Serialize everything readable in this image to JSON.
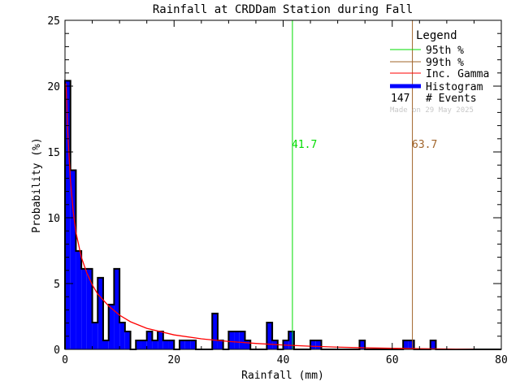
{
  "chart_data": {
    "type": "bar",
    "title": "Rainfall at CRDDam Station during Fall",
    "xlabel": "Rainfall (mm)",
    "ylabel": "Probability (%)",
    "xlim": [
      0,
      80
    ],
    "ylim": [
      0,
      25
    ],
    "xticks": [
      "0",
      "20",
      "40",
      "60",
      "80"
    ],
    "yticks": [
      "0",
      "5",
      "10",
      "15",
      "20",
      "25"
    ],
    "bin_width": 1,
    "histogram": {
      "name": "Histogram",
      "color": "#0000ff",
      "bins": [
        {
          "x": 0,
          "y": 20.41
        },
        {
          "x": 1,
          "y": 13.61
        },
        {
          "x": 2,
          "y": 7.48
        },
        {
          "x": 3,
          "y": 6.12
        },
        {
          "x": 4,
          "y": 6.12
        },
        {
          "x": 5,
          "y": 2.04
        },
        {
          "x": 6,
          "y": 5.44
        },
        {
          "x": 7,
          "y": 0.68
        },
        {
          "x": 8,
          "y": 3.4
        },
        {
          "x": 9,
          "y": 6.12
        },
        {
          "x": 10,
          "y": 2.04
        },
        {
          "x": 11,
          "y": 1.36
        },
        {
          "x": 13,
          "y": 0.68
        },
        {
          "x": 14,
          "y": 0.68
        },
        {
          "x": 15,
          "y": 1.36
        },
        {
          "x": 16,
          "y": 0.68
        },
        {
          "x": 17,
          "y": 1.36
        },
        {
          "x": 18,
          "y": 0.68
        },
        {
          "x": 19,
          "y": 0.68
        },
        {
          "x": 21,
          "y": 0.68
        },
        {
          "x": 22,
          "y": 0.68
        },
        {
          "x": 23,
          "y": 0.68
        },
        {
          "x": 27,
          "y": 2.72
        },
        {
          "x": 28,
          "y": 0.68
        },
        {
          "x": 30,
          "y": 1.36
        },
        {
          "x": 31,
          "y": 1.36
        },
        {
          "x": 32,
          "y": 1.36
        },
        {
          "x": 33,
          "y": 0.68
        },
        {
          "x": 37,
          "y": 2.04
        },
        {
          "x": 38,
          "y": 0.68
        },
        {
          "x": 40,
          "y": 0.68
        },
        {
          "x": 41,
          "y": 1.36
        },
        {
          "x": 45,
          "y": 0.68
        },
        {
          "x": 46,
          "y": 0.68
        },
        {
          "x": 54,
          "y": 0.68
        },
        {
          "x": 62,
          "y": 0.68
        },
        {
          "x": 63,
          "y": 0.68
        },
        {
          "x": 67,
          "y": 0.68
        }
      ]
    },
    "gamma": {
      "name": "Inc. Gamma",
      "color": "#ff0000",
      "points": [
        [
          0.2,
          20.2
        ],
        [
          0.5,
          16.5
        ],
        [
          1,
          12.8
        ],
        [
          1.5,
          10.5
        ],
        [
          2,
          8.9
        ],
        [
          3,
          7.0
        ],
        [
          4,
          5.8
        ],
        [
          5,
          4.9
        ],
        [
          6,
          4.2
        ],
        [
          8,
          3.3
        ],
        [
          10,
          2.6
        ],
        [
          12,
          2.1
        ],
        [
          15,
          1.6
        ],
        [
          20,
          1.1
        ],
        [
          25,
          0.8
        ],
        [
          30,
          0.6
        ],
        [
          35,
          0.45
        ],
        [
          40,
          0.33
        ],
        [
          45,
          0.24
        ],
        [
          50,
          0.17
        ],
        [
          55,
          0.12
        ],
        [
          60,
          0.08
        ],
        [
          65,
          0.05
        ],
        [
          70,
          0.03
        ],
        [
          75,
          0.01
        ]
      ]
    },
    "percentiles": [
      {
        "name": "95th %",
        "value": 41.7,
        "label": "41.7",
        "color": "#00dd00"
      },
      {
        "name": "99th %",
        "value": 63.7,
        "label": "63.7",
        "color": "#a0642a"
      }
    ],
    "legend": {
      "title": "Legend",
      "position": "top-right",
      "events_count": "147",
      "events_label": "# Events",
      "made_on": "Made on 29 May 2025"
    }
  }
}
